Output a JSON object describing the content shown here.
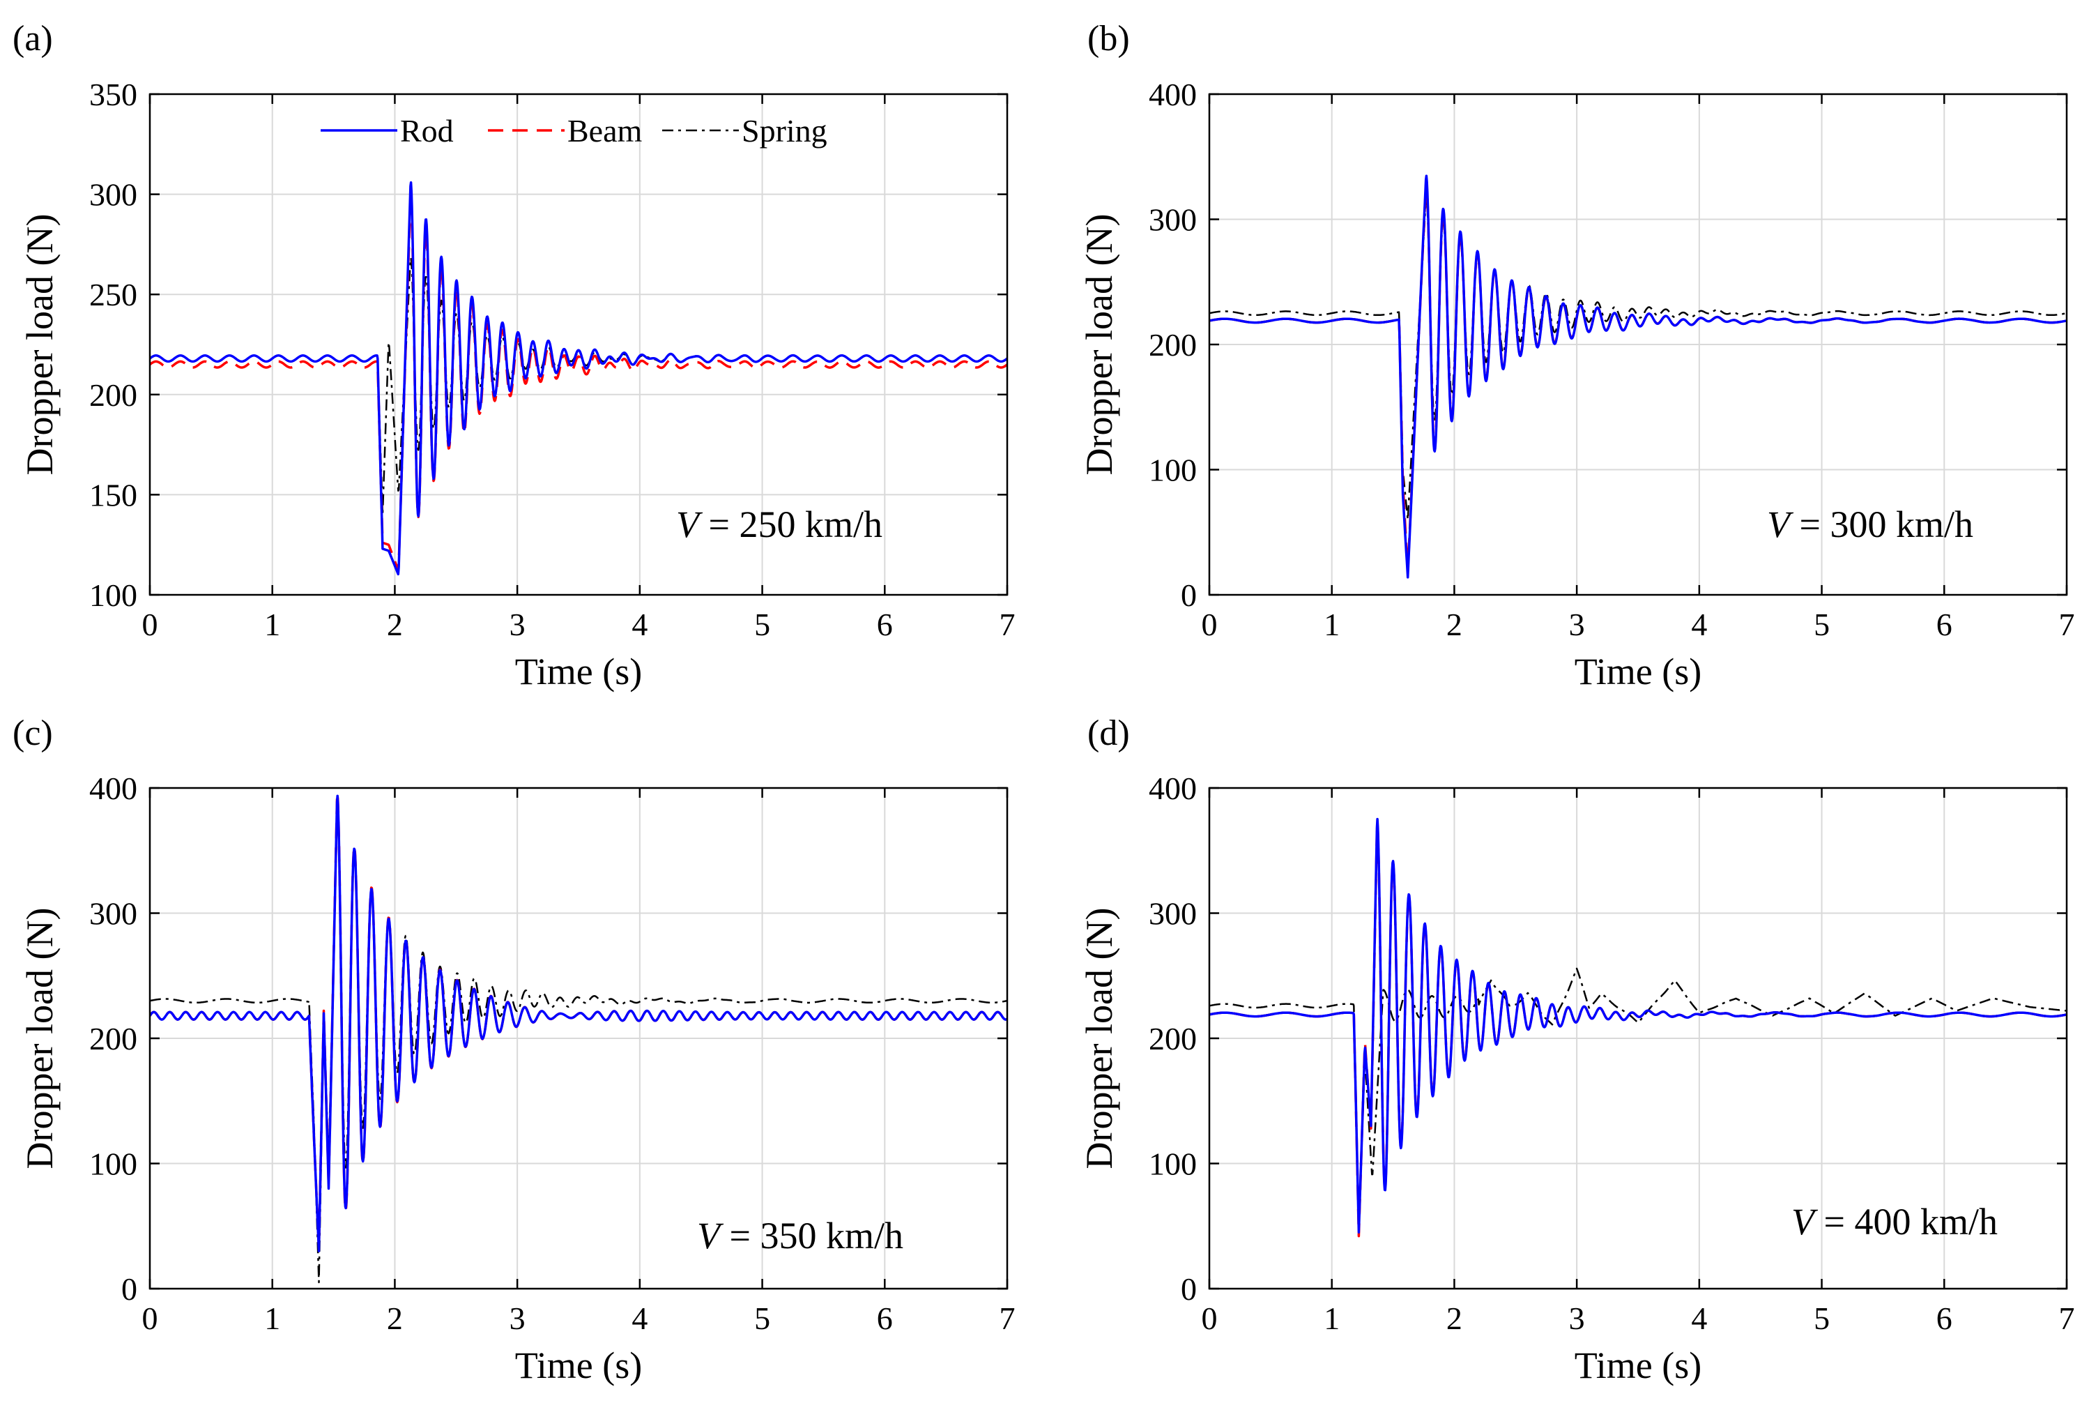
{
  "figure": {
    "legend": [
      "Rod",
      "Beam",
      "Spring"
    ]
  },
  "colors": {
    "rod": "#0000ff",
    "beam": "#ff0000",
    "spring": "#000000",
    "grid": "#d9d9d9"
  },
  "chart_data": [
    {
      "type": "line",
      "panel_label": "(a)",
      "annotation": {
        "var": "V",
        "text": " = 250 km/h"
      },
      "xlabel": "Time (s)",
      "ylabel": "Dropper load (N)",
      "xlim": [
        0,
        7
      ],
      "ylim": [
        100,
        350
      ],
      "xticks": [
        0,
        1,
        2,
        3,
        4,
        5,
        6,
        7
      ],
      "yticks": [
        100,
        150,
        200,
        250,
        300,
        350
      ],
      "grid": true,
      "legend_position": "top",
      "series": [
        {
          "name": "Rod",
          "baseline": 218,
          "t0": 1.86,
          "dip": [
            [
              1.9,
              123
            ],
            [
              1.95,
              122
            ],
            [
              2.03,
              110
            ]
          ],
          "peak": [
            2.13,
            308
          ],
          "period": 0.125,
          "decay": 0.45,
          "ripple": 1.5,
          "ripple_period": 0.2,
          "after": 218
        },
        {
          "name": "Beam",
          "baseline": 215,
          "t0": 1.86,
          "dip": [
            [
              1.9,
              126
            ],
            [
              1.95,
              125
            ],
            [
              2.03,
              112
            ]
          ],
          "peak": [
            2.13,
            302
          ],
          "period": 0.125,
          "decay": 0.45,
          "ripple": 1.5,
          "ripple_period": 0.2,
          "after": 215
        },
        {
          "name": "Spring",
          "baseline": 218,
          "t0": 1.86,
          "dip": [
            [
              1.9,
              140
            ],
            [
              1.95,
              228
            ],
            [
              2.03,
              150
            ]
          ],
          "peak": [
            2.13,
            270
          ],
          "period": 0.125,
          "decay": 0.45,
          "ripple": 1.5,
          "ripple_period": 0.2,
          "after": 218
        }
      ]
    },
    {
      "type": "line",
      "panel_label": "(b)",
      "annotation": {
        "var": "V",
        "text": " = 300 km/h"
      },
      "xlabel": "Time (s)",
      "ylabel": "Dropper load (N)",
      "xlim": [
        0,
        7
      ],
      "ylim": [
        0,
        400
      ],
      "xticks": [
        0,
        1,
        2,
        3,
        4,
        5,
        6,
        7
      ],
      "yticks": [
        0,
        100,
        200,
        300,
        400
      ],
      "grid": true,
      "series": [
        {
          "name": "Rod",
          "baseline": 219,
          "t0": 1.55,
          "dip": [
            [
              1.58,
              80
            ],
            [
              1.62,
              14
            ]
          ],
          "peak": [
            1.77,
            336
          ],
          "period": 0.14,
          "decay": 0.55,
          "ripple": 1.5,
          "ripple_period": 0.5,
          "after": 219
        },
        {
          "name": "Beam",
          "baseline": 219,
          "t0": 1.55,
          "dip": [
            [
              1.58,
              90
            ],
            [
              1.62,
              18
            ]
          ],
          "peak": [
            1.77,
            332
          ],
          "period": 0.14,
          "decay": 0.55,
          "ripple": 1.5,
          "ripple_period": 0.5,
          "after": 219
        },
        {
          "name": "Spring",
          "baseline": 225,
          "t0": 1.55,
          "dip": [
            [
              1.58,
              100
            ],
            [
              1.62,
              60
            ]
          ],
          "peak": [
            1.77,
            320
          ],
          "period": 0.14,
          "decay": 0.55,
          "ripple": 1.5,
          "ripple_period": 0.5,
          "after": 225
        }
      ]
    },
    {
      "type": "line",
      "panel_label": "(c)",
      "annotation": {
        "var": "V",
        "text": " = 350 km/h"
      },
      "xlabel": "Time (s)",
      "ylabel": "Dropper load (N)",
      "xlim": [
        0,
        7
      ],
      "ylim": [
        0,
        400
      ],
      "xticks": [
        0,
        1,
        2,
        3,
        4,
        5,
        6,
        7
      ],
      "yticks": [
        0,
        100,
        200,
        300,
        400
      ],
      "grid": true,
      "series": [
        {
          "name": "Rod",
          "baseline": 218,
          "t0": 1.3,
          "dip": [
            [
              1.34,
              120
            ],
            [
              1.38,
              30
            ],
            [
              1.42,
              220
            ],
            [
              1.46,
              80
            ]
          ],
          "peak": [
            1.53,
            398
          ],
          "period": 0.14,
          "decay": 0.5,
          "ripple": 3,
          "ripple_period": 0.13,
          "after": 218
        },
        {
          "name": "Beam",
          "baseline": 218,
          "t0": 1.3,
          "dip": [
            [
              1.34,
              120
            ],
            [
              1.38,
              32
            ],
            [
              1.42,
              222
            ],
            [
              1.46,
              82
            ]
          ],
          "peak": [
            1.53,
            400
          ],
          "period": 0.14,
          "decay": 0.5,
          "ripple": 3,
          "ripple_period": 0.13,
          "after": 218
        },
        {
          "name": "Spring",
          "baseline": 230,
          "t0": 1.3,
          "dip": [
            [
              1.34,
              130
            ],
            [
              1.38,
              5
            ],
            [
              1.42,
              215
            ],
            [
              1.46,
              100
            ]
          ],
          "peak": [
            1.53,
            385
          ],
          "period": 0.14,
          "decay": 0.5,
          "ripple": 1.5,
          "ripple_period": 0.5,
          "after": 230
        }
      ]
    },
    {
      "type": "line",
      "panel_label": "(d)",
      "annotation": {
        "var": "V",
        "text": " = 400 km/h"
      },
      "xlabel": "Time (s)",
      "ylabel": "Dropper load (N)",
      "xlim": [
        0,
        7
      ],
      "ylim": [
        0,
        400
      ],
      "xticks": [
        0,
        1,
        2,
        3,
        4,
        5,
        6,
        7
      ],
      "yticks": [
        0,
        100,
        200,
        300,
        400
      ],
      "grid": true,
      "series": [
        {
          "name": "Rod",
          "baseline": 219,
          "t0": 1.18,
          "dip": [
            [
              1.22,
              45
            ],
            [
              1.27,
              195
            ],
            [
              1.32,
              130
            ]
          ],
          "peak": [
            1.37,
            378
          ],
          "period": 0.13,
          "decay": 0.5,
          "ripple": 1.5,
          "ripple_period": 0.5,
          "after": 219
        },
        {
          "name": "Beam",
          "baseline": 219,
          "t0": 1.18,
          "dip": [
            [
              1.22,
              42
            ],
            [
              1.27,
              198
            ],
            [
              1.32,
              128
            ]
          ],
          "peak": [
            1.37,
            375
          ],
          "period": 0.13,
          "decay": 0.5,
          "ripple": 1.5,
          "ripple_period": 0.5,
          "after": 219
        },
        {
          "name": "Spring",
          "baseline": 226,
          "t0": 1.18,
          "dip": [
            [
              1.22,
              50
            ],
            [
              1.27,
              185
            ],
            [
              1.33,
              88
            ]
          ],
          "peak": [
            1.42,
            240
          ],
          "period": 0.2,
          "decay": 0.9,
          "ripple": 1.5,
          "ripple_period": 0.5,
          "after": 226,
          "late": [
            [
              2.2,
              225
            ],
            [
              2.3,
              248
            ],
            [
              2.45,
              225
            ],
            [
              2.6,
              235
            ],
            [
              2.8,
              210
            ],
            [
              3.0,
              255
            ],
            [
              3.1,
              225
            ],
            [
              3.2,
              235
            ],
            [
              3.5,
              213
            ],
            [
              3.8,
              246
            ],
            [
              4.0,
              220
            ],
            [
              4.3,
              232
            ],
            [
              4.6,
              218
            ],
            [
              4.9,
              232
            ],
            [
              5.1,
              220
            ],
            [
              5.35,
              236
            ],
            [
              5.6,
              218
            ],
            [
              5.9,
              232
            ],
            [
              6.1,
              222
            ],
            [
              6.4,
              232
            ],
            [
              6.7,
              225
            ],
            [
              7.0,
              222
            ]
          ]
        }
      ]
    }
  ]
}
